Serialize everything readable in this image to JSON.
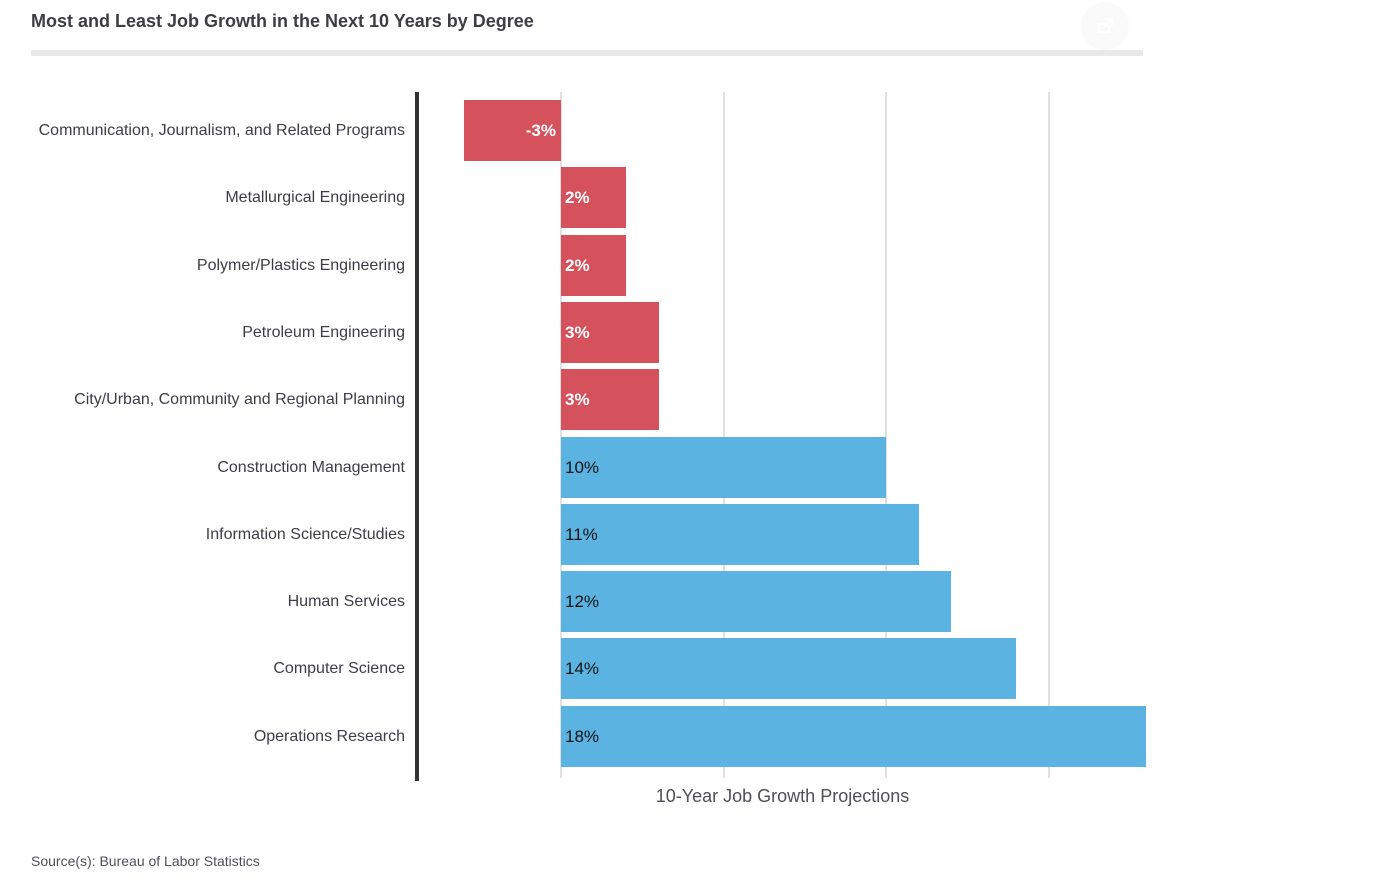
{
  "header": {
    "title": "Most and Least Job Growth in the Next 10 Years by Degree"
  },
  "icons": {
    "share": "share-export"
  },
  "footer": {
    "source": "Source(s): Bureau of Labor Statistics"
  },
  "colors": {
    "bar_negative_group": "#d5515c",
    "bar_positive_group": "#5bb3e2",
    "value_text_on_red": "#ffffff",
    "value_text_on_blue": "#121212",
    "axis_line": "#333333",
    "gridline": "#e0e0e0",
    "divider": "#e9e9e9",
    "title_text": "#3d3d44",
    "label_text": "#3d3d46"
  },
  "chart_data": {
    "type": "bar",
    "orientation": "horizontal",
    "title": "Most and Least Job Growth in the Next 10 Years by Degree",
    "xlabel": "10-Year Job Growth Projections",
    "ylabel": "",
    "xlim": [
      -4.4,
      19
    ],
    "grid": true,
    "gridline_values": [
      0,
      5,
      10,
      15
    ],
    "legend_position": "none",
    "x_tick_labels": [],
    "categories": [
      "Communication, Journalism, and Related Programs",
      "Metallurgical Engineering",
      "Polymer/Plastics Engineering",
      "Petroleum Engineering",
      "City/Urban, Community and Regional Planning",
      "Construction Management",
      "Information Science/Studies",
      "Human Services",
      "Computer Science",
      "Operations Research"
    ],
    "values": [
      -3,
      2,
      2,
      3,
      3,
      10,
      11,
      12,
      14,
      18
    ],
    "points": [
      {
        "label": "Communication, Journalism, and Related Programs",
        "value": -3,
        "display": "-3%",
        "bar_color": "#d5515c",
        "text_color": "#ffffff"
      },
      {
        "label": "Metallurgical Engineering",
        "value": 2,
        "display": "2%",
        "bar_color": "#d5515c",
        "text_color": "#ffffff"
      },
      {
        "label": "Polymer/Plastics Engineering",
        "value": 2,
        "display": "2%",
        "bar_color": "#d5515c",
        "text_color": "#ffffff"
      },
      {
        "label": "Petroleum Engineering",
        "value": 3,
        "display": "3%",
        "bar_color": "#d5515c",
        "text_color": "#ffffff"
      },
      {
        "label": "City/Urban, Community and Regional Planning",
        "value": 3,
        "display": "3%",
        "bar_color": "#d5515c",
        "text_color": "#ffffff"
      },
      {
        "label": "Construction Management",
        "value": 10,
        "display": "10%",
        "bar_color": "#5bb3e2",
        "text_color": "#121212"
      },
      {
        "label": "Information Science/Studies",
        "value": 11,
        "display": "11%",
        "bar_color": "#5bb3e2",
        "text_color": "#121212"
      },
      {
        "label": "Human Services",
        "value": 12,
        "display": "12%",
        "bar_color": "#5bb3e2",
        "text_color": "#121212"
      },
      {
        "label": "Computer Science",
        "value": 14,
        "display": "14%",
        "bar_color": "#5bb3e2",
        "text_color": "#121212"
      },
      {
        "label": "Operations Research",
        "value": 18,
        "display": "18%",
        "bar_color": "#5bb3e2",
        "text_color": "#121212"
      }
    ]
  }
}
